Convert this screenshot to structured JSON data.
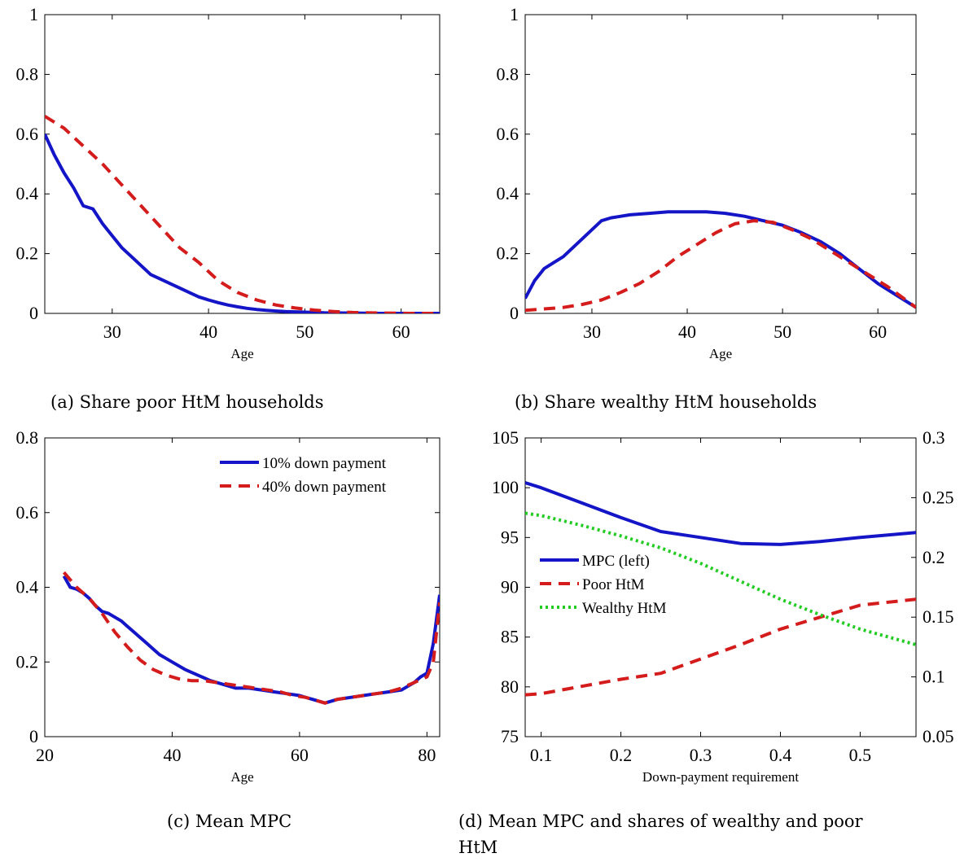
{
  "captions": {
    "a": "(a) Share poor HtM households",
    "b": "(b) Share wealthy HtM households",
    "c": "(c) Mean MPC",
    "d_line1": "(d) Mean MPC and shares of wealthy and poor",
    "d_line2": "HtM"
  },
  "colors": {
    "blue": "#1515c8",
    "red": "#d41c1c",
    "green": "#22cc22"
  },
  "chart_data": [
    {
      "id": "a",
      "type": "line",
      "title": "",
      "xlabel": "Age",
      "ylabel": "",
      "xlim": [
        23,
        64
      ],
      "ylim": [
        0,
        1
      ],
      "xticks": [
        30,
        40,
        50,
        60
      ],
      "yticks": [
        0,
        0.2,
        0.4,
        0.6,
        0.8,
        1
      ],
      "ytick_labels": [
        "0",
        "0.2",
        "0.4",
        "0.6",
        "0.8",
        "1"
      ],
      "series": [
        {
          "color": "blue",
          "dash": "solid",
          "x": [
            23,
            24,
            25,
            26,
            27,
            28,
            29,
            30,
            31,
            32,
            33,
            34,
            35,
            36,
            37,
            38,
            39,
            40,
            41,
            42,
            43,
            44,
            45,
            46,
            47,
            48,
            50,
            52,
            55,
            58,
            61,
            64
          ],
          "y": [
            0.6,
            0.53,
            0.47,
            0.42,
            0.36,
            0.35,
            0.3,
            0.26,
            0.22,
            0.19,
            0.16,
            0.13,
            0.115,
            0.1,
            0.085,
            0.07,
            0.055,
            0.045,
            0.036,
            0.028,
            0.022,
            0.017,
            0.013,
            0.01,
            0.008,
            0.006,
            0.004,
            0.002,
            0.001,
            0.0,
            0.0,
            0.0
          ]
        },
        {
          "color": "red",
          "dash": "dashed",
          "x": [
            23,
            25,
            27,
            29,
            31,
            33,
            35,
            37,
            39,
            41,
            43,
            45,
            47,
            49,
            51,
            53,
            55,
            58,
            61,
            64
          ],
          "y": [
            0.66,
            0.62,
            0.56,
            0.5,
            0.43,
            0.36,
            0.29,
            0.22,
            0.17,
            0.11,
            0.07,
            0.045,
            0.028,
            0.018,
            0.011,
            0.006,
            0.003,
            0.001,
            0.0,
            0.0
          ]
        }
      ]
    },
    {
      "id": "b",
      "type": "line",
      "title": "",
      "xlabel": "Age",
      "ylabel": "",
      "xlim": [
        23,
        64
      ],
      "ylim": [
        0,
        1
      ],
      "xticks": [
        30,
        40,
        50,
        60
      ],
      "yticks": [
        0,
        0.2,
        0.4,
        0.6,
        0.8,
        1
      ],
      "ytick_labels": [
        "0",
        "0.2",
        "0.4",
        "0.6",
        "0.8",
        "1"
      ],
      "series": [
        {
          "color": "blue",
          "dash": "solid",
          "x": [
            23,
            24,
            25,
            26,
            27,
            28,
            29,
            30,
            31,
            32,
            34,
            36,
            38,
            40,
            42,
            44,
            46,
            48,
            50,
            52,
            54,
            56,
            58,
            60,
            62,
            64
          ],
          "y": [
            0.05,
            0.11,
            0.15,
            0.17,
            0.19,
            0.22,
            0.25,
            0.28,
            0.31,
            0.32,
            0.33,
            0.335,
            0.34,
            0.34,
            0.34,
            0.335,
            0.325,
            0.31,
            0.295,
            0.27,
            0.24,
            0.2,
            0.15,
            0.1,
            0.06,
            0.02
          ]
        },
        {
          "color": "red",
          "dash": "dashed",
          "x": [
            23,
            25,
            27,
            29,
            31,
            33,
            35,
            37,
            39,
            41,
            43,
            45,
            47,
            49,
            51,
            53,
            55,
            57,
            59,
            61,
            64
          ],
          "y": [
            0.01,
            0.015,
            0.02,
            0.03,
            0.045,
            0.07,
            0.1,
            0.14,
            0.19,
            0.23,
            0.27,
            0.3,
            0.31,
            0.305,
            0.28,
            0.25,
            0.21,
            0.17,
            0.13,
            0.09,
            0.02
          ]
        }
      ]
    },
    {
      "id": "c",
      "type": "line",
      "title": "",
      "xlabel": "Age",
      "ylabel": "",
      "xlim": [
        20,
        82
      ],
      "ylim": [
        0,
        0.8
      ],
      "xticks": [
        20,
        40,
        60,
        80
      ],
      "yticks": [
        0,
        0.2,
        0.4,
        0.6,
        0.8
      ],
      "ytick_labels": [
        "0",
        "0.2",
        "0.4",
        "0.6",
        "0.8"
      ],
      "legend_position": "top-right",
      "series": [
        {
          "name": "10% down payment",
          "color": "blue",
          "dash": "solid",
          "x": [
            23,
            24,
            25,
            26,
            27,
            28,
            29,
            30,
            31,
            32,
            33,
            34,
            35,
            36,
            37,
            38,
            39,
            40,
            42,
            44,
            46,
            48,
            50,
            52,
            54,
            56,
            58,
            60,
            62,
            64,
            66,
            68,
            70,
            72,
            74,
            76,
            78,
            79,
            80,
            81,
            82
          ],
          "y": [
            0.43,
            0.4,
            0.395,
            0.385,
            0.37,
            0.35,
            0.335,
            0.33,
            0.32,
            0.31,
            0.295,
            0.28,
            0.265,
            0.25,
            0.235,
            0.22,
            0.21,
            0.2,
            0.18,
            0.165,
            0.15,
            0.14,
            0.13,
            0.13,
            0.125,
            0.12,
            0.115,
            0.11,
            0.1,
            0.09,
            0.1,
            0.105,
            0.11,
            0.115,
            0.12,
            0.125,
            0.145,
            0.16,
            0.17,
            0.25,
            0.38
          ]
        },
        {
          "name": "40% down payment",
          "color": "red",
          "dash": "dashed",
          "x": [
            23,
            25,
            27,
            29,
            31,
            33,
            35,
            37,
            39,
            41,
            43,
            45,
            47,
            49,
            51,
            53,
            55,
            57,
            59,
            61,
            63,
            64,
            66,
            68,
            70,
            72,
            74,
            76,
            78,
            80,
            81,
            82
          ],
          "y": [
            0.44,
            0.4,
            0.37,
            0.33,
            0.28,
            0.24,
            0.205,
            0.18,
            0.165,
            0.155,
            0.15,
            0.15,
            0.145,
            0.14,
            0.135,
            0.13,
            0.125,
            0.12,
            0.11,
            0.105,
            0.095,
            0.09,
            0.1,
            0.105,
            0.11,
            0.115,
            0.12,
            0.13,
            0.145,
            0.16,
            0.2,
            0.36
          ]
        }
      ]
    },
    {
      "id": "d",
      "type": "line",
      "title": "",
      "xlabel": "Down-payment requirement",
      "ylabel": "",
      "xlim": [
        0.08,
        0.57
      ],
      "ylim": [
        75,
        105
      ],
      "ylim_right": [
        0.05,
        0.3
      ],
      "xticks": [
        0.1,
        0.2,
        0.3,
        0.4,
        0.5
      ],
      "yticks": [
        75,
        80,
        85,
        90,
        95,
        100,
        105
      ],
      "ytick_labels": [
        "75",
        "80",
        "85",
        "90",
        "95",
        "100",
        "105"
      ],
      "yticks_right": [
        0.05,
        0.1,
        0.15,
        0.2,
        0.25,
        0.3
      ],
      "ytick_labels_right": [
        "0.05",
        "0.1",
        "0.15",
        "0.2",
        "0.25",
        "0.3"
      ],
      "legend_position": "middle-left",
      "series": [
        {
          "name": "MPC (left)",
          "color": "blue",
          "dash": "solid",
          "axis": "left",
          "x": [
            0.08,
            0.1,
            0.15,
            0.2,
            0.25,
            0.3,
            0.35,
            0.4,
            0.45,
            0.5,
            0.57
          ],
          "y": [
            100.5,
            100.0,
            98.5,
            97.0,
            95.6,
            95.0,
            94.4,
            94.3,
            94.6,
            95.0,
            95.5
          ]
        },
        {
          "name": "Poor HtM",
          "color": "red",
          "dash": "dashed",
          "axis": "right",
          "x": [
            0.08,
            0.1,
            0.15,
            0.2,
            0.25,
            0.3,
            0.35,
            0.4,
            0.45,
            0.5,
            0.57
          ],
          "y": [
            0.085,
            0.086,
            0.092,
            0.098,
            0.103,
            0.115,
            0.127,
            0.14,
            0.15,
            0.16,
            0.165
          ]
        },
        {
          "name": "Wealthy HtM",
          "color": "green",
          "dash": "dotted",
          "axis": "right",
          "x": [
            0.08,
            0.1,
            0.15,
            0.2,
            0.25,
            0.3,
            0.35,
            0.4,
            0.45,
            0.5,
            0.57
          ],
          "y": [
            0.237,
            0.235,
            0.227,
            0.218,
            0.208,
            0.195,
            0.18,
            0.165,
            0.152,
            0.14,
            0.127
          ]
        }
      ]
    }
  ]
}
